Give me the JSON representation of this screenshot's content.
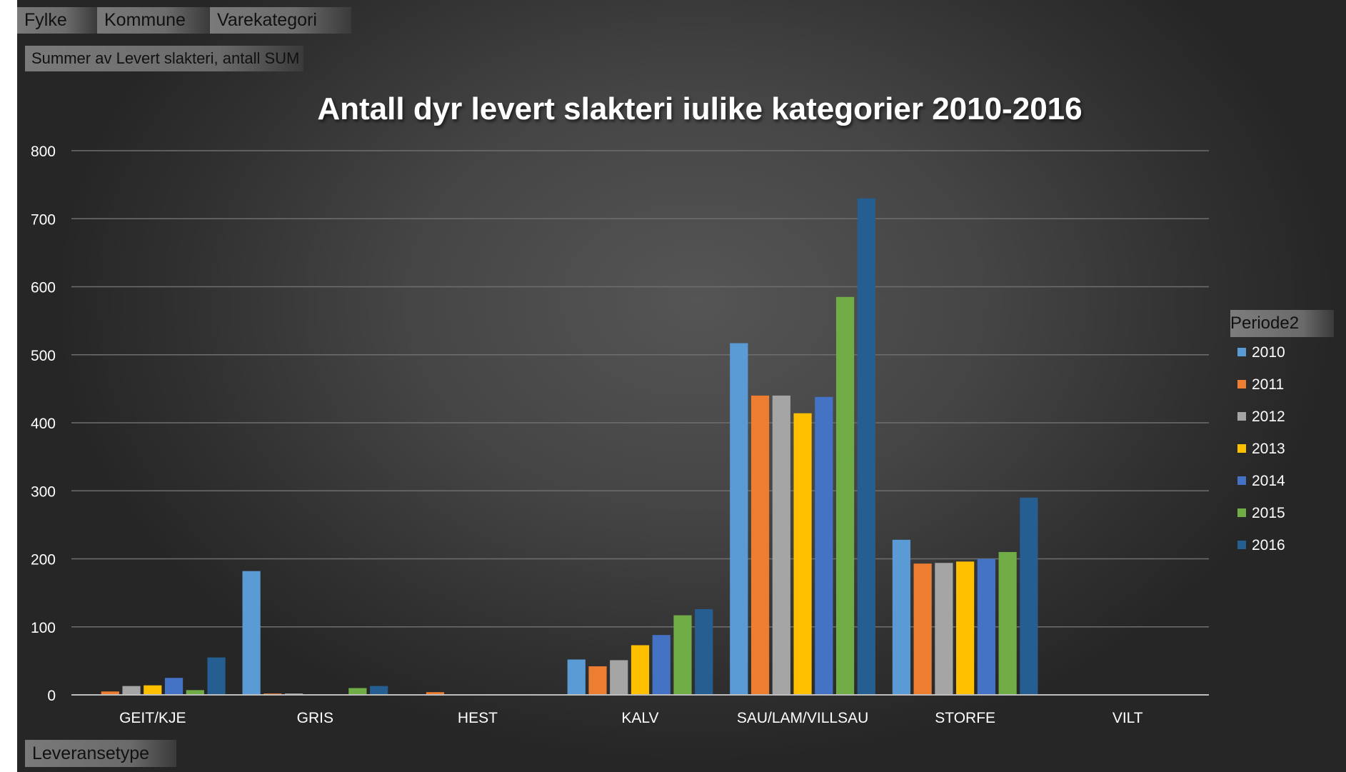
{
  "pivot_fields": {
    "filters": [
      "Fylke",
      "Kommune",
      "Varekategori"
    ],
    "values_field": "Summer av Levert slakteri, antall SUM",
    "axis_field": "Leveransetype"
  },
  "colors": {
    "2010": "#5B9BD5",
    "2011": "#ED7D31",
    "2012": "#A5A5A5",
    "2013": "#FFC000",
    "2014": "#4472C4",
    "2015": "#70AD47",
    "2016": "#255E91"
  },
  "chart_data": {
    "type": "bar",
    "title": "Antall dyr levert slakteri  iulike kategorier  2010-2016",
    "xlabel": "",
    "ylabel": "",
    "ylim": [
      0,
      800
    ],
    "yticks": [
      "0",
      "100",
      "200",
      "300",
      "400",
      "500",
      "600",
      "700",
      "800"
    ],
    "grid": true,
    "legend_title": "Periode2",
    "legend_position": "right",
    "categories": [
      "GEIT/KJE",
      "GRIS",
      "HEST",
      "KALV",
      "SAU/LAM/VILLSAU",
      "STORFE",
      "VILT"
    ],
    "series": [
      {
        "name": "2010",
        "values": [
          0,
          182,
          0,
          52,
          517,
          228,
          1
        ]
      },
      {
        "name": "2011",
        "values": [
          5,
          2,
          4,
          42,
          440,
          193,
          0
        ]
      },
      {
        "name": "2012",
        "values": [
          13,
          2,
          0,
          51,
          440,
          194,
          0
        ]
      },
      {
        "name": "2013",
        "values": [
          14,
          0,
          1,
          73,
          414,
          196,
          0
        ]
      },
      {
        "name": "2014",
        "values": [
          25,
          0,
          1,
          88,
          438,
          200,
          1
        ]
      },
      {
        "name": "2015",
        "values": [
          7,
          10,
          0,
          117,
          585,
          210,
          1
        ]
      },
      {
        "name": "2016",
        "values": [
          55,
          13,
          1,
          126,
          730,
          290,
          0
        ]
      }
    ]
  }
}
